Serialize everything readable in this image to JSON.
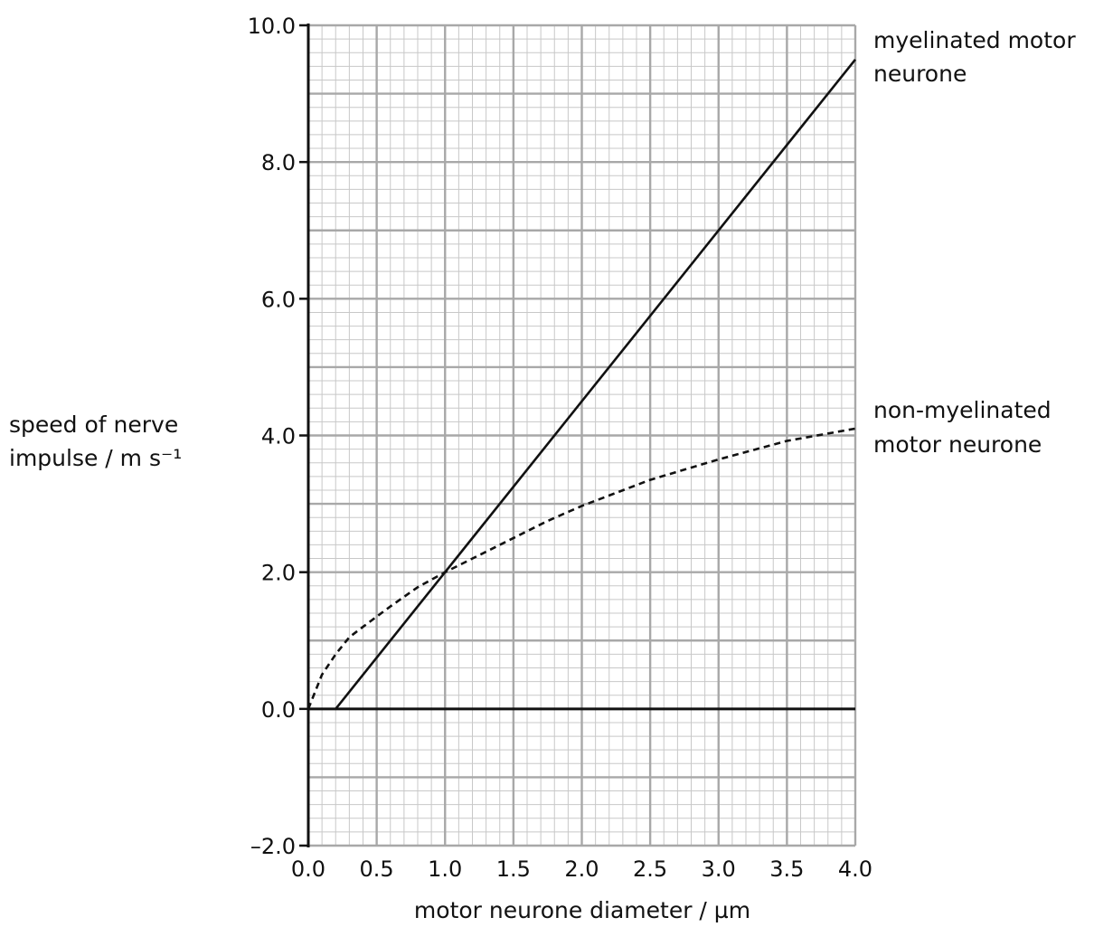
{
  "chart_data": {
    "type": "line",
    "xlabel": "motor neurone diameter / µm",
    "ylabel_lines": [
      "speed of nerve",
      "impulse / m s⁻¹"
    ],
    "xlim": [
      0.0,
      4.0
    ],
    "ylim": [
      -2.0,
      10.0
    ],
    "x_ticks": [
      "0.0",
      "0.5",
      "1.0",
      "1.5",
      "2.0",
      "2.5",
      "3.0",
      "3.5",
      "4.0"
    ],
    "y_ticks": [
      "–2.0",
      "0.0",
      "2.0",
      "4.0",
      "6.0",
      "8.0",
      "10.0"
    ],
    "grid": true,
    "series": [
      {
        "name_lines": [
          "myelinated motor",
          "neurone"
        ],
        "style": "solid",
        "color": "#111111",
        "points": [
          [
            0.2,
            0.0
          ],
          [
            4.0,
            9.5
          ]
        ]
      },
      {
        "name_lines": [
          "non-myelinated",
          "motor neurone"
        ],
        "style": "dashed",
        "color": "#111111",
        "points": [
          [
            0.0,
            0.0
          ],
          [
            0.1,
            0.5
          ],
          [
            0.2,
            0.8
          ],
          [
            0.3,
            1.05
          ],
          [
            0.4,
            1.2
          ],
          [
            0.5,
            1.35
          ],
          [
            0.6,
            1.5
          ],
          [
            0.8,
            1.78
          ],
          [
            1.0,
            2.0
          ],
          [
            1.25,
            2.25
          ],
          [
            1.5,
            2.5
          ],
          [
            1.75,
            2.75
          ],
          [
            2.0,
            2.97
          ],
          [
            2.5,
            3.35
          ],
          [
            3.0,
            3.65
          ],
          [
            3.5,
            3.92
          ],
          [
            4.0,
            4.1
          ]
        ]
      }
    ]
  }
}
